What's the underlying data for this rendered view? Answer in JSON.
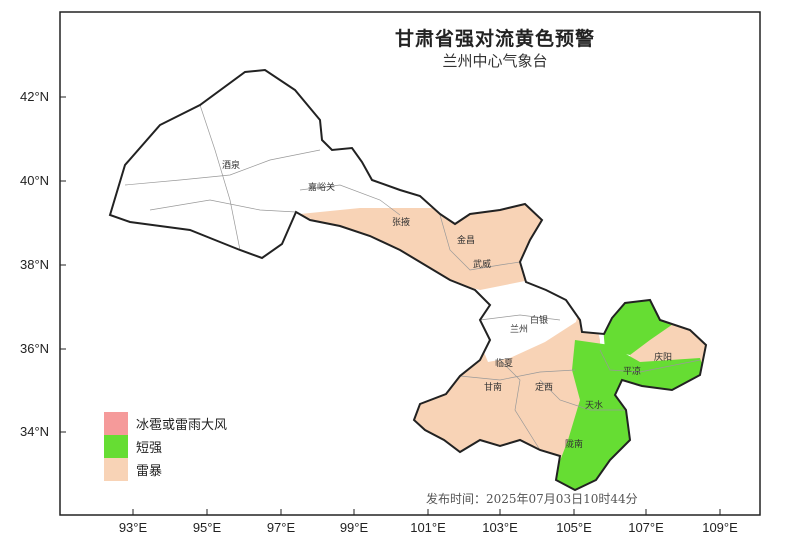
{
  "title": "甘肃省强对流黄色预警",
  "subtitle": "兰州中心气象台",
  "latitude_ticks": [
    "42°N",
    "40°N",
    "38°N",
    "36°N",
    "34°N"
  ],
  "longitude_ticks": [
    "93°E",
    "95°E",
    "97°E",
    "99°E",
    "101°E",
    "103°E",
    "105°E",
    "107°E",
    "109°E"
  ],
  "legend": [
    {
      "label": "冰雹或雷雨大风",
      "color": "#f59a9a"
    },
    {
      "label": "短强",
      "color": "#66dd33"
    },
    {
      "label": "雷暴",
      "color": "#f8d3b6"
    }
  ],
  "cities": [
    "酒泉",
    "嘉峪关",
    "张掖",
    "金昌",
    "武威",
    "兰州",
    "白银",
    "临夏",
    "甘南",
    "定西",
    "天水",
    "陇南",
    "平凉",
    "庆阳"
  ],
  "issue_time": "发布时间：2025年07月03日10时44分"
}
